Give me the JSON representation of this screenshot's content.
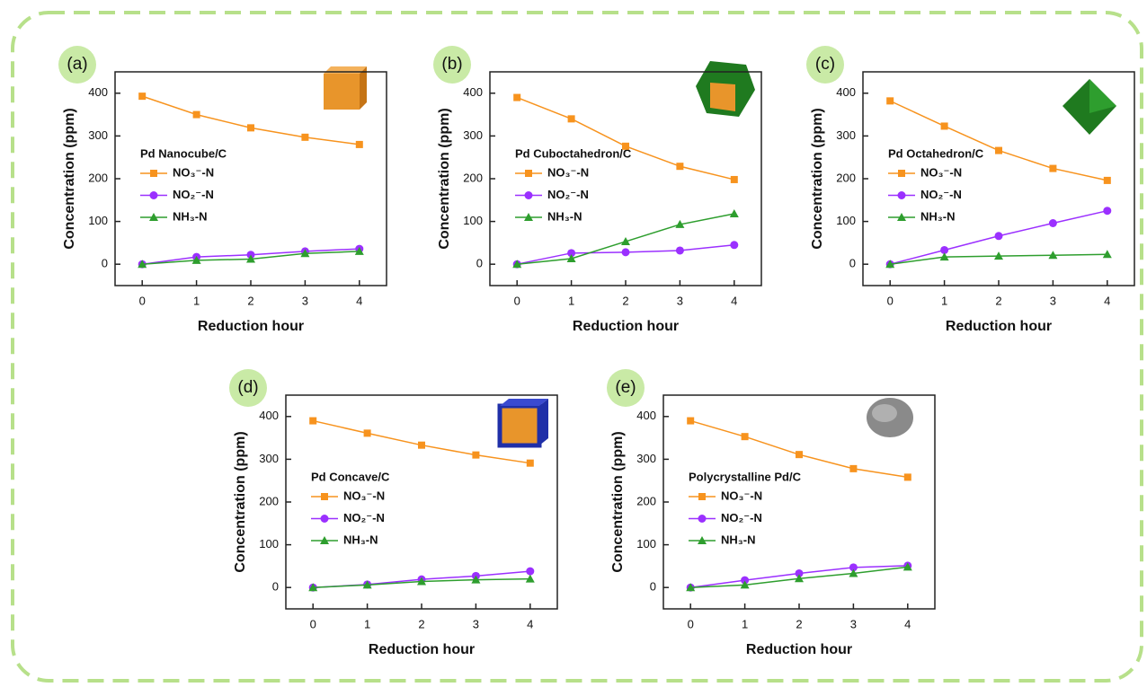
{
  "chart_data": [
    {
      "type": "line",
      "label": "(a)",
      "legend_title": "Pd Nanocube/C",
      "xlabel": "Reduction hour",
      "ylabel": "Concentration (ppm)",
      "x": [
        0,
        1,
        2,
        3,
        4
      ],
      "xlim": [
        -0.5,
        4.5
      ],
      "xticks": [
        0,
        1,
        2,
        3,
        4
      ],
      "ylim": [
        -50,
        450
      ],
      "yticks": [
        0,
        100,
        200,
        300,
        400
      ],
      "series": [
        {
          "name": "NO₃⁻-N",
          "color": "#f7931e",
          "marker": "square",
          "values": [
            393,
            350,
            319,
            297,
            280
          ]
        },
        {
          "name": "NO₂⁻-N",
          "color": "#9b30ff",
          "marker": "circle",
          "values": [
            0,
            17,
            22,
            30,
            36
          ]
        },
        {
          "name": "NH₃-N",
          "color": "#2e9e2e",
          "marker": "triangle",
          "values": [
            0,
            9,
            12,
            25,
            30
          ]
        }
      ]
    },
    {
      "type": "line",
      "label": "(b)",
      "legend_title": "Pd Cuboctahedron/C",
      "xlabel": "Reduction hour",
      "ylabel": "Concentration (ppm)",
      "x": [
        0,
        1,
        2,
        3,
        4
      ],
      "xlim": [
        -0.5,
        4.5
      ],
      "xticks": [
        0,
        1,
        2,
        3,
        4
      ],
      "ylim": [
        -50,
        450
      ],
      "yticks": [
        0,
        100,
        200,
        300,
        400
      ],
      "series": [
        {
          "name": "NO₃⁻-N",
          "color": "#f7931e",
          "marker": "square",
          "values": [
            390,
            340,
            276,
            229,
            198
          ]
        },
        {
          "name": "NO₂⁻-N",
          "color": "#9b30ff",
          "marker": "circle",
          "values": [
            0,
            26,
            28,
            32,
            45
          ]
        },
        {
          "name": "NH₃-N",
          "color": "#2e9e2e",
          "marker": "triangle",
          "values": [
            0,
            13,
            53,
            93,
            118
          ]
        }
      ]
    },
    {
      "type": "line",
      "label": "(c)",
      "legend_title": "Pd Octahedron/C",
      "xlabel": "Reduction hour",
      "ylabel": "Concentration (ppm)",
      "x": [
        0,
        1,
        2,
        3,
        4
      ],
      "xlim": [
        -0.5,
        4.5
      ],
      "xticks": [
        0,
        1,
        2,
        3,
        4
      ],
      "ylim": [
        -50,
        450
      ],
      "yticks": [
        0,
        100,
        200,
        300,
        400
      ],
      "series": [
        {
          "name": "NO₃⁻-N",
          "color": "#f7931e",
          "marker": "square",
          "values": [
            382,
            323,
            266,
            224,
            196
          ]
        },
        {
          "name": "NO₂⁻-N",
          "color": "#9b30ff",
          "marker": "circle",
          "values": [
            0,
            33,
            66,
            96,
            125
          ]
        },
        {
          "name": "NH₃-N",
          "color": "#2e9e2e",
          "marker": "triangle",
          "values": [
            0,
            17,
            19,
            21,
            23
          ]
        }
      ]
    },
    {
      "type": "line",
      "label": "(d)",
      "legend_title": "Pd Concave/C",
      "xlabel": "Reduction hour",
      "ylabel": "Concentration (ppm)",
      "x": [
        0,
        1,
        2,
        3,
        4
      ],
      "xlim": [
        -0.5,
        4.5
      ],
      "xticks": [
        0,
        1,
        2,
        3,
        4
      ],
      "ylim": [
        -50,
        450
      ],
      "yticks": [
        0,
        100,
        200,
        300,
        400
      ],
      "series": [
        {
          "name": "NO₃⁻-N",
          "color": "#f7931e",
          "marker": "square",
          "values": [
            390,
            361,
            333,
            310,
            291
          ]
        },
        {
          "name": "NO₂⁻-N",
          "color": "#9b30ff",
          "marker": "circle",
          "values": [
            0,
            7,
            19,
            27,
            38
          ]
        },
        {
          "name": "NH₃-N",
          "color": "#2e9e2e",
          "marker": "triangle",
          "values": [
            0,
            6,
            14,
            18,
            20
          ]
        }
      ]
    },
    {
      "type": "line",
      "label": "(e)",
      "legend_title": "Polycrystalline Pd/C",
      "xlabel": "Reduction hour",
      "ylabel": "Concentration (ppm)",
      "x": [
        0,
        1,
        2,
        3,
        4
      ],
      "xlim": [
        -0.5,
        4.5
      ],
      "xticks": [
        0,
        1,
        2,
        3,
        4
      ],
      "ylim": [
        -50,
        450
      ],
      "yticks": [
        0,
        100,
        200,
        300,
        400
      ],
      "series": [
        {
          "name": "NO₃⁻-N",
          "color": "#f7931e",
          "marker": "square",
          "values": [
            390,
            353,
            311,
            278,
            258
          ]
        },
        {
          "name": "NO₂⁻-N",
          "color": "#9b30ff",
          "marker": "circle",
          "values": [
            0,
            17,
            33,
            47,
            51
          ]
        },
        {
          "name": "NH₃-N",
          "color": "#2e9e2e",
          "marker": "triangle",
          "values": [
            0,
            6,
            21,
            33,
            48
          ]
        }
      ]
    }
  ]
}
